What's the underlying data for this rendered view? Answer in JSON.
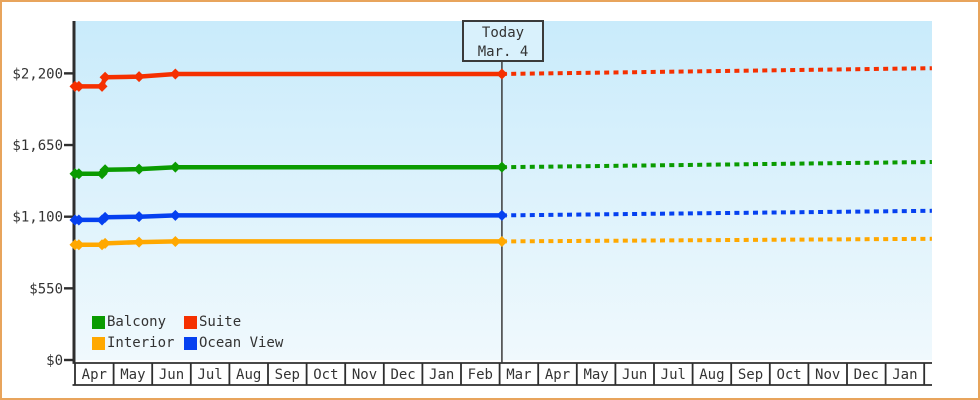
{
  "frame": {
    "border_color": "#e8a45c",
    "background_color": "#ffffff"
  },
  "chart_data": {
    "type": "line",
    "title": "",
    "plot_background": {
      "gradient_top": "#c9ebfb",
      "gradient_bottom": "#f0f9fd"
    },
    "axis_color": "#2e2e2e",
    "text_color": "#333333",
    "y_axis": {
      "tick_values": [
        0,
        550,
        1100,
        1650,
        2200
      ],
      "tick_labels": [
        "$0",
        "$550",
        "$1,100",
        "$1,650",
        "$2,200"
      ],
      "value_at_plot_top": 2602
    },
    "x_axis": {
      "months": [
        "Apr",
        "May",
        "Jun",
        "Jul",
        "Aug",
        "Sep",
        "Oct",
        "Nov",
        "Dec",
        "Jan",
        "Feb",
        "Mar",
        "Apr",
        "May",
        "Jun",
        "Jul",
        "Aug",
        "Sep",
        "Oct",
        "Nov",
        "Dec",
        "Jan"
      ]
    },
    "today": {
      "line1": "Today",
      "line2": "Mar. 4",
      "month_index": 11.06,
      "line_color": "#3a3a3a"
    },
    "series": [
      {
        "name": "Balcony",
        "color": "#0a9b00",
        "observations": [
          [
            0,
            1430
          ],
          [
            0.1,
            1430
          ],
          [
            0.7,
            1430
          ],
          [
            0.78,
            1460
          ],
          [
            1.66,
            1465
          ],
          [
            2.6,
            1480
          ],
          [
            11.06,
            1480
          ]
        ],
        "projection": [
          [
            11.06,
            1480
          ],
          [
            22.2,
            1520
          ]
        ]
      },
      {
        "name": "Suite",
        "color": "#f53000",
        "observations": [
          [
            0,
            2100
          ],
          [
            0.1,
            2100
          ],
          [
            0.7,
            2100
          ],
          [
            0.78,
            2170
          ],
          [
            1.66,
            2175
          ],
          [
            2.6,
            2195
          ],
          [
            11.06,
            2195
          ]
        ],
        "projection": [
          [
            11.06,
            2195
          ],
          [
            22.2,
            2240
          ]
        ]
      },
      {
        "name": "Interior",
        "color": "#ffa800",
        "observations": [
          [
            0,
            885
          ],
          [
            0.1,
            885
          ],
          [
            0.7,
            885
          ],
          [
            0.78,
            895
          ],
          [
            1.66,
            905
          ],
          [
            2.6,
            910
          ],
          [
            11.06,
            910
          ]
        ],
        "projection": [
          [
            11.06,
            910
          ],
          [
            22.2,
            930
          ]
        ]
      },
      {
        "name": "Ocean View",
        "color": "#0540f0",
        "observations": [
          [
            0,
            1075
          ],
          [
            0.1,
            1075
          ],
          [
            0.7,
            1075
          ],
          [
            0.78,
            1095
          ],
          [
            1.66,
            1100
          ],
          [
            2.6,
            1110
          ],
          [
            11.06,
            1110
          ]
        ],
        "projection": [
          [
            11.06,
            1110
          ],
          [
            22.2,
            1145
          ]
        ]
      }
    ],
    "legend": {
      "items": [
        {
          "label": "Balcony",
          "color": "#0a9b00"
        },
        {
          "label": "Suite",
          "color": "#f53000"
        },
        {
          "label": "Interior",
          "color": "#ffa800"
        },
        {
          "label": "Ocean View",
          "color": "#0540f0"
        }
      ]
    }
  }
}
